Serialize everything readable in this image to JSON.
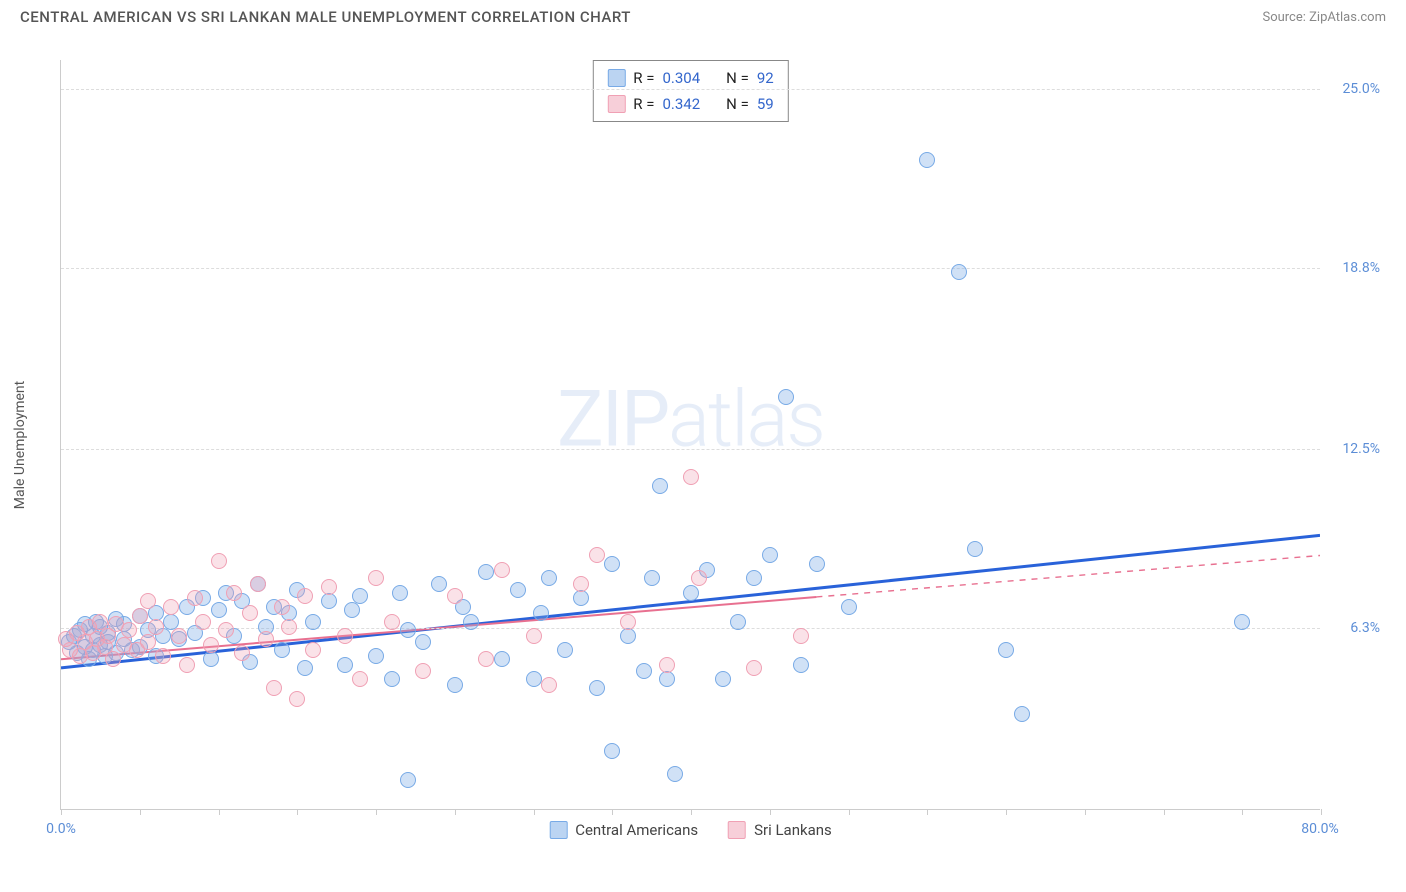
{
  "header": {
    "title": "CENTRAL AMERICAN VS SRI LANKAN MALE UNEMPLOYMENT CORRELATION CHART",
    "source_prefix": "Source: ",
    "source_name": "ZipAtlas.com"
  },
  "chart": {
    "type": "scatter",
    "ylabel": "Male Unemployment",
    "watermark_bold": "ZIP",
    "watermark_thin": "atlas",
    "xlim": [
      0,
      80
    ],
    "ylim": [
      0,
      26
    ],
    "x_min_label": "0.0%",
    "x_max_label": "80.0%",
    "y_ticks": [
      {
        "v": 6.3,
        "label": "6.3%"
      },
      {
        "v": 12.5,
        "label": "12.5%"
      },
      {
        "v": 18.8,
        "label": "18.8%"
      },
      {
        "v": 25.0,
        "label": "25.0%"
      }
    ],
    "x_tick_positions": [
      0,
      5,
      10,
      15,
      20,
      25,
      30,
      35,
      40,
      45,
      50,
      55,
      60,
      65,
      70,
      75,
      80
    ],
    "background_color": "#ffffff",
    "grid_color": "#dddddd",
    "axis_color": "#cccccc",
    "tick_label_color": "#5b8dd6",
    "marker_radius": 8,
    "series": [
      {
        "name": "Central Americans",
        "color_fill": "rgba(120,170,230,0.35)",
        "color_stroke": "#78aae6",
        "trend_color": "#2962d9",
        "trend_width": 3,
        "trend_dash": "none",
        "trend": {
          "x1": 0,
          "y1": 4.9,
          "x2": 80,
          "y2": 9.5,
          "solid_to_x": 80
        },
        "r": 0.304,
        "n": 92,
        "points": [
          [
            0.5,
            5.8
          ],
          [
            0.8,
            6.0
          ],
          [
            1.0,
            5.4
          ],
          [
            1.2,
            6.2
          ],
          [
            1.5,
            5.6
          ],
          [
            1.5,
            6.4
          ],
          [
            1.8,
            5.2
          ],
          [
            2.0,
            6.0
          ],
          [
            2.0,
            5.5
          ],
          [
            2.2,
            6.5
          ],
          [
            2.5,
            5.7
          ],
          [
            2.5,
            6.3
          ],
          [
            2.8,
            5.3
          ],
          [
            3.0,
            6.1
          ],
          [
            3.0,
            5.8
          ],
          [
            3.5,
            6.6
          ],
          [
            3.5,
            5.4
          ],
          [
            4.0,
            5.9
          ],
          [
            4.0,
            6.4
          ],
          [
            4.5,
            5.5
          ],
          [
            5.0,
            6.7
          ],
          [
            5.0,
            5.6
          ],
          [
            5.5,
            6.2
          ],
          [
            6.0,
            6.8
          ],
          [
            6.0,
            5.3
          ],
          [
            6.5,
            6.0
          ],
          [
            7.0,
            6.5
          ],
          [
            7.5,
            5.9
          ],
          [
            8.0,
            7.0
          ],
          [
            8.5,
            6.1
          ],
          [
            9.0,
            7.3
          ],
          [
            9.5,
            5.2
          ],
          [
            10.0,
            6.9
          ],
          [
            10.5,
            7.5
          ],
          [
            11.0,
            6.0
          ],
          [
            11.5,
            7.2
          ],
          [
            12.0,
            5.1
          ],
          [
            12.5,
            7.8
          ],
          [
            13.0,
            6.3
          ],
          [
            13.5,
            7.0
          ],
          [
            14.0,
            5.5
          ],
          [
            14.5,
            6.8
          ],
          [
            15.0,
            7.6
          ],
          [
            15.5,
            4.9
          ],
          [
            16.0,
            6.5
          ],
          [
            17.0,
            7.2
          ],
          [
            18.0,
            5.0
          ],
          [
            18.5,
            6.9
          ],
          [
            19.0,
            7.4
          ],
          [
            20.0,
            5.3
          ],
          [
            21.0,
            4.5
          ],
          [
            21.5,
            7.5
          ],
          [
            22.0,
            6.2
          ],
          [
            23.0,
            5.8
          ],
          [
            24.0,
            7.8
          ],
          [
            25.0,
            4.3
          ],
          [
            25.5,
            7.0
          ],
          [
            26.0,
            6.5
          ],
          [
            27.0,
            8.2
          ],
          [
            28.0,
            5.2
          ],
          [
            29.0,
            7.6
          ],
          [
            30.0,
            4.5
          ],
          [
            30.5,
            6.8
          ],
          [
            31.0,
            8.0
          ],
          [
            32.0,
            5.5
          ],
          [
            33.0,
            7.3
          ],
          [
            34.0,
            4.2
          ],
          [
            22.0,
            1.0
          ],
          [
            35.0,
            8.5
          ],
          [
            36.0,
            6.0
          ],
          [
            37.0,
            4.8
          ],
          [
            37.5,
            8.0
          ],
          [
            38.0,
            11.2
          ],
          [
            38.5,
            4.5
          ],
          [
            39.0,
            1.2
          ],
          [
            40.0,
            7.5
          ],
          [
            41.0,
            8.3
          ],
          [
            42.0,
            4.5
          ],
          [
            43.0,
            6.5
          ],
          [
            44.0,
            8.0
          ],
          [
            45.0,
            8.8
          ],
          [
            46.0,
            14.3
          ],
          [
            47.0,
            5.0
          ],
          [
            48.0,
            8.5
          ],
          [
            50.0,
            7.0
          ],
          [
            55.0,
            22.5
          ],
          [
            57.0,
            18.6
          ],
          [
            58.0,
            9.0
          ],
          [
            60.0,
            5.5
          ],
          [
            61.0,
            3.3
          ],
          [
            75.0,
            6.5
          ],
          [
            35.0,
            2.0
          ]
        ]
      },
      {
        "name": "Sri Lankans",
        "color_fill": "rgba(240,160,180,0.3)",
        "color_stroke": "#f0a0b4",
        "trend_color": "#e87090",
        "trend_width": 2,
        "trend_dash": "5,5",
        "trend": {
          "x1": 0,
          "y1": 5.2,
          "x2": 80,
          "y2": 8.8,
          "solid_to_x": 48
        },
        "r": 0.342,
        "n": 59,
        "points": [
          [
            0.3,
            5.9
          ],
          [
            0.6,
            5.5
          ],
          [
            1.0,
            6.1
          ],
          [
            1.2,
            5.3
          ],
          [
            1.5,
            5.8
          ],
          [
            1.8,
            6.3
          ],
          [
            2.0,
            5.4
          ],
          [
            2.3,
            5.9
          ],
          [
            2.5,
            6.5
          ],
          [
            2.8,
            5.6
          ],
          [
            3.0,
            6.0
          ],
          [
            3.3,
            5.2
          ],
          [
            3.5,
            6.4
          ],
          [
            4.0,
            5.7
          ],
          [
            4.3,
            6.2
          ],
          [
            4.8,
            5.5
          ],
          [
            5.0,
            6.7
          ],
          [
            5.5,
            5.8
          ],
          [
            5.5,
            7.2
          ],
          [
            6.0,
            6.3
          ],
          [
            6.5,
            5.3
          ],
          [
            7.0,
            7.0
          ],
          [
            7.5,
            6.0
          ],
          [
            8.0,
            5.0
          ],
          [
            8.5,
            7.3
          ],
          [
            9.0,
            6.5
          ],
          [
            9.5,
            5.7
          ],
          [
            10.0,
            8.6
          ],
          [
            10.5,
            6.2
          ],
          [
            11.0,
            7.5
          ],
          [
            11.5,
            5.4
          ],
          [
            12.0,
            6.8
          ],
          [
            12.5,
            7.8
          ],
          [
            13.0,
            5.9
          ],
          [
            13.5,
            4.2
          ],
          [
            14,
            7.0
          ],
          [
            14.5,
            6.3
          ],
          [
            15.0,
            3.8
          ],
          [
            15.5,
            7.4
          ],
          [
            16.0,
            5.5
          ],
          [
            17.0,
            7.7
          ],
          [
            18.0,
            6.0
          ],
          [
            19.0,
            4.5
          ],
          [
            20.0,
            8.0
          ],
          [
            21.0,
            6.5
          ],
          [
            23.0,
            4.8
          ],
          [
            25.0,
            7.4
          ],
          [
            27.0,
            5.2
          ],
          [
            28.0,
            8.3
          ],
          [
            30.0,
            6.0
          ],
          [
            31.0,
            4.3
          ],
          [
            33.0,
            7.8
          ],
          [
            34.0,
            8.8
          ],
          [
            36.0,
            6.5
          ],
          [
            38.5,
            5.0
          ],
          [
            40.0,
            11.5
          ],
          [
            40.5,
            8.0
          ],
          [
            44.0,
            4.9
          ],
          [
            47.0,
            6.0
          ]
        ]
      }
    ],
    "stats_legend": {
      "rows": [
        {
          "swatch": "sw-blue",
          "r_label": "R =",
          "r_val": "0.304",
          "n_label": "N =",
          "n_val": "92"
        },
        {
          "swatch": "sw-pink",
          "r_label": "R =",
          "r_val": "0.342",
          "n_label": "N =",
          "n_val": "59"
        }
      ]
    },
    "bottom_legend": [
      {
        "swatch": "sw-blue",
        "label": "Central Americans"
      },
      {
        "swatch": "sw-pink",
        "label": "Sri Lankans"
      }
    ]
  }
}
